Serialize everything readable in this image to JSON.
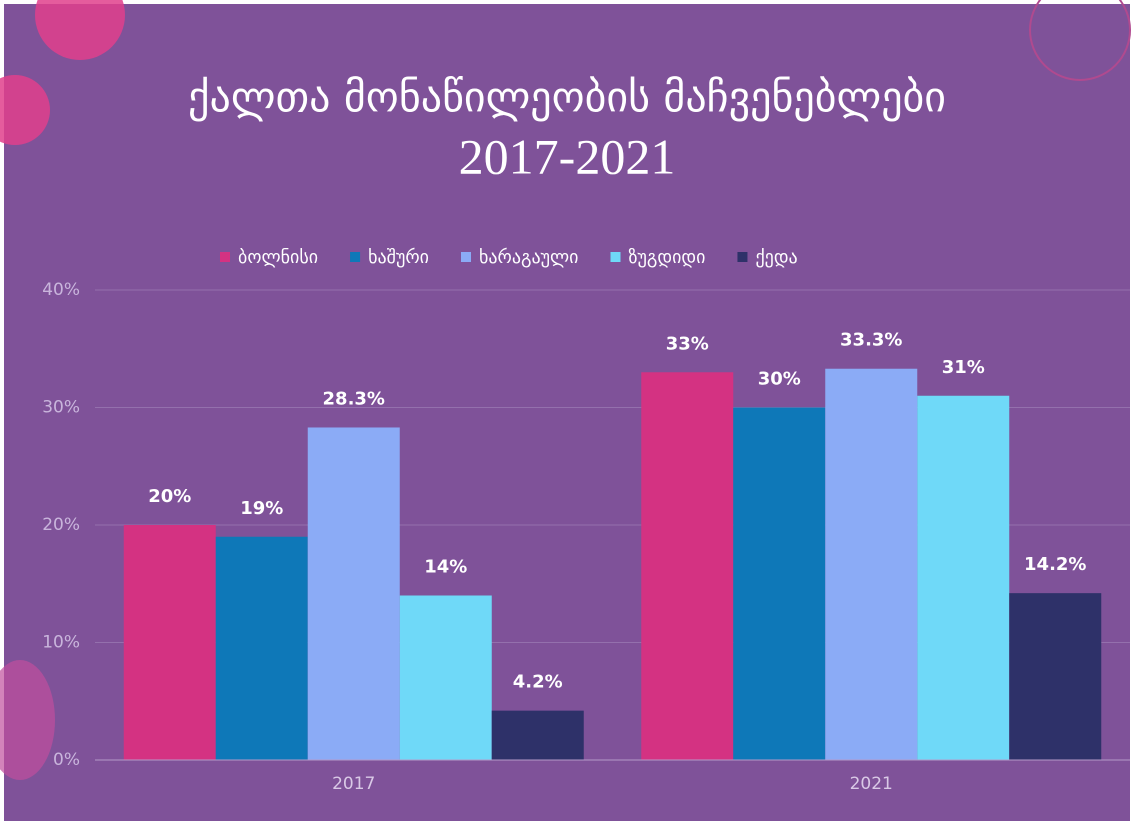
{
  "chart_data": {
    "type": "bar",
    "title": "ქალთა მონაწილეობის მაჩვენებლები",
    "subtitle": "2017-2021",
    "categories": [
      "2017",
      "2021"
    ],
    "series": [
      {
        "name": "ბოლნისი",
        "color": "#d43282",
        "values": [
          20,
          33
        ],
        "value_labels": [
          "20%",
          "33%"
        ]
      },
      {
        "name": "ხაშური",
        "color": "#0e78b8",
        "values": [
          19,
          30
        ],
        "value_labels": [
          "19%",
          "30%"
        ]
      },
      {
        "name": "ხარაგაული",
        "color": "#8babf6",
        "values": [
          28.3,
          33.3
        ],
        "value_labels": [
          "28.3%",
          "33.3%"
        ]
      },
      {
        "name": "ზუგდიდი",
        "color": "#6fd9f8",
        "values": [
          14,
          31
        ],
        "value_labels": [
          "14%",
          "31%"
        ]
      },
      {
        "name": "ქედა",
        "color": "#2e3169",
        "values": [
          4.2,
          14.2
        ],
        "value_labels": [
          "4.2%",
          "14.2%"
        ]
      }
    ],
    "ylim": [
      0,
      40
    ],
    "yticks": [
      {
        "value": 0,
        "label": "0%"
      },
      {
        "value": 10,
        "label": "10%"
      },
      {
        "value": 20,
        "label": "20%"
      },
      {
        "value": 30,
        "label": "30%"
      },
      {
        "value": 40,
        "label": "40%"
      }
    ],
    "grid": true,
    "legend": "top"
  }
}
